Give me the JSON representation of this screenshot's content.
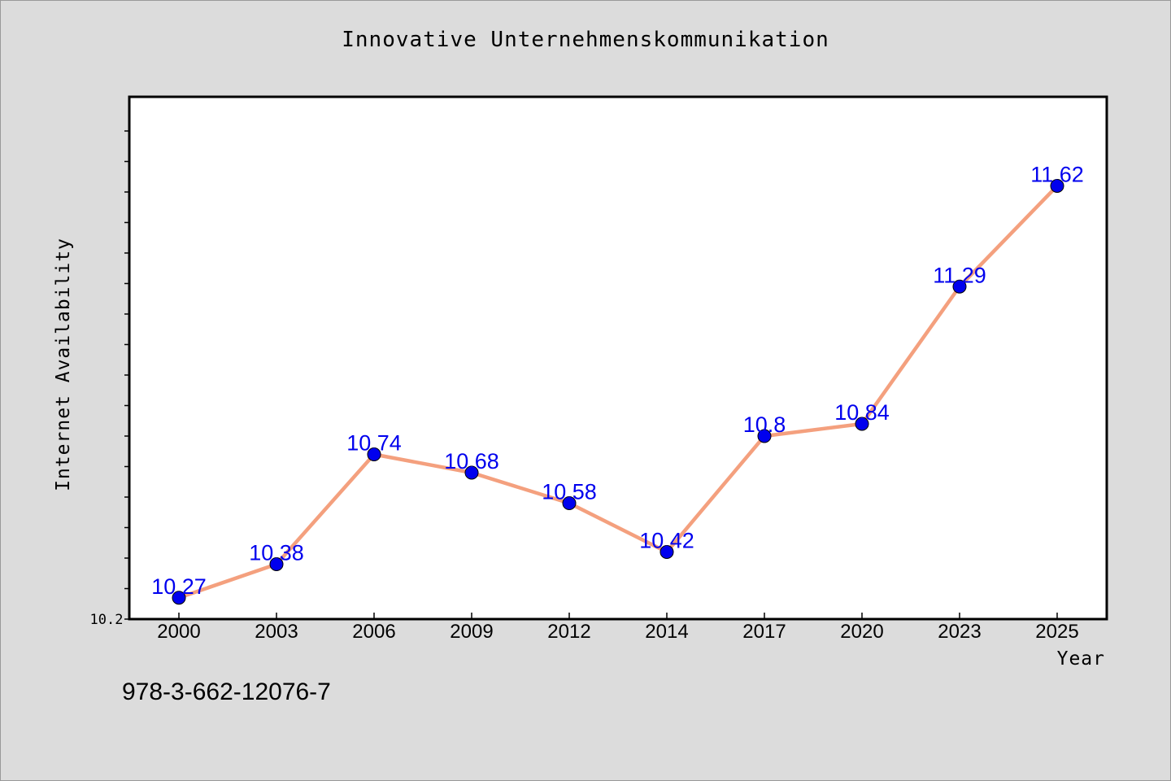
{
  "chart_data": {
    "type": "line",
    "title": "Innovative Unternehmenskommunikation",
    "xlabel": "Year",
    "ylabel": "Internet Availability",
    "categories": [
      "2000",
      "2003",
      "2006",
      "2009",
      "2012",
      "2014",
      "2017",
      "2020",
      "2023",
      "2025"
    ],
    "series": [
      {
        "values": [
          10.27,
          10.38,
          10.74,
          10.68,
          10.58,
          10.42,
          10.8,
          10.84,
          11.29,
          11.62
        ],
        "labels": [
          "10.27",
          "10.38",
          "10.74",
          "10.68",
          "10.58",
          "10.42",
          "10.8",
          "10.84",
          "11.29",
          "11.62"
        ]
      }
    ],
    "ylim": [
      10.2,
      11.8
    ],
    "y_tick_labels": [
      "10.2"
    ],
    "grid": false,
    "legend": "none",
    "colors": {
      "line": "#f4a07e",
      "marker": "#0000ee",
      "data_label": "#0000ee",
      "plot_background": "#ffffff",
      "page_background": "#dcdcdc"
    }
  },
  "footer": {
    "isbn": "978-3-662-12076-7"
  }
}
